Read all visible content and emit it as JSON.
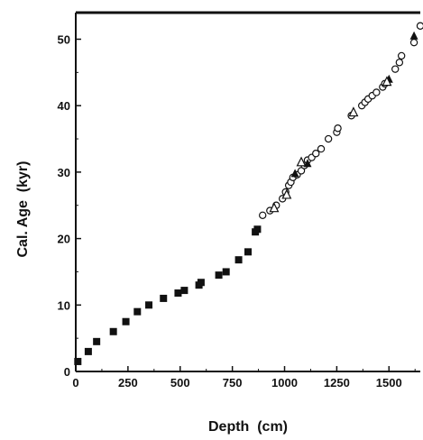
{
  "chart_data": {
    "type": "scatter",
    "title": "",
    "xlabel": "Depth  (cm)",
    "ylabel": "Cal. Age  (kyr)",
    "xlim": [
      0,
      1650
    ],
    "ylim": [
      0,
      54
    ],
    "xticks": [
      0,
      250,
      500,
      750,
      1000,
      1250,
      1500
    ],
    "yticks": [
      0,
      10,
      20,
      30,
      40,
      50
    ],
    "grid": false,
    "legend": "none",
    "colors": {
      "filled": "#111111",
      "open": "#111111",
      "axis": "#111111"
    },
    "series": [
      {
        "marker": "square-filled",
        "points": [
          [
            10,
            1.5
          ],
          [
            60,
            3.0
          ],
          [
            100,
            4.5
          ],
          [
            180,
            6.0
          ],
          [
            240,
            7.5
          ],
          [
            295,
            9.0
          ],
          [
            350,
            10.0
          ],
          [
            420,
            11.0
          ],
          [
            490,
            11.8
          ],
          [
            520,
            12.2
          ],
          [
            590,
            13.0
          ],
          [
            600,
            13.4
          ],
          [
            685,
            14.5
          ],
          [
            720,
            15.0
          ],
          [
            780,
            16.8
          ],
          [
            825,
            18.0
          ],
          [
            860,
            21.0
          ],
          [
            870,
            21.4
          ]
        ]
      },
      {
        "marker": "circle-open",
        "points": [
          [
            895,
            23.5
          ],
          [
            930,
            24.2
          ],
          [
            960,
            25.0
          ],
          [
            990,
            26.0
          ],
          [
            1005,
            27.0
          ],
          [
            1020,
            28.0
          ],
          [
            1030,
            28.5
          ],
          [
            1040,
            29.2
          ],
          [
            1060,
            29.6
          ],
          [
            1080,
            30.2
          ],
          [
            1095,
            31.0
          ],
          [
            1110,
            31.8
          ],
          [
            1130,
            32.2
          ],
          [
            1150,
            32.8
          ],
          [
            1175,
            33.5
          ],
          [
            1210,
            35.0
          ],
          [
            1250,
            36.0
          ],
          [
            1255,
            36.6
          ],
          [
            1320,
            38.5
          ],
          [
            1370,
            40.0
          ],
          [
            1385,
            40.5
          ],
          [
            1400,
            41.0
          ],
          [
            1420,
            41.5
          ],
          [
            1440,
            42.0
          ],
          [
            1470,
            42.8
          ],
          [
            1480,
            43.3
          ],
          [
            1530,
            45.5
          ],
          [
            1550,
            46.5
          ],
          [
            1560,
            47.5
          ],
          [
            1620,
            49.5
          ],
          [
            1650,
            52.0
          ]
        ]
      },
      {
        "marker": "triangle-filled",
        "points": [
          [
            1050,
            29.8
          ],
          [
            1110,
            31.3
          ],
          [
            1500,
            44.0
          ],
          [
            1620,
            50.5
          ]
        ]
      },
      {
        "marker": "triangle-open",
        "points": [
          [
            950,
            24.6
          ],
          [
            1010,
            26.6
          ],
          [
            1080,
            31.5
          ],
          [
            1330,
            39.0
          ],
          [
            1490,
            43.6
          ]
        ]
      }
    ]
  }
}
